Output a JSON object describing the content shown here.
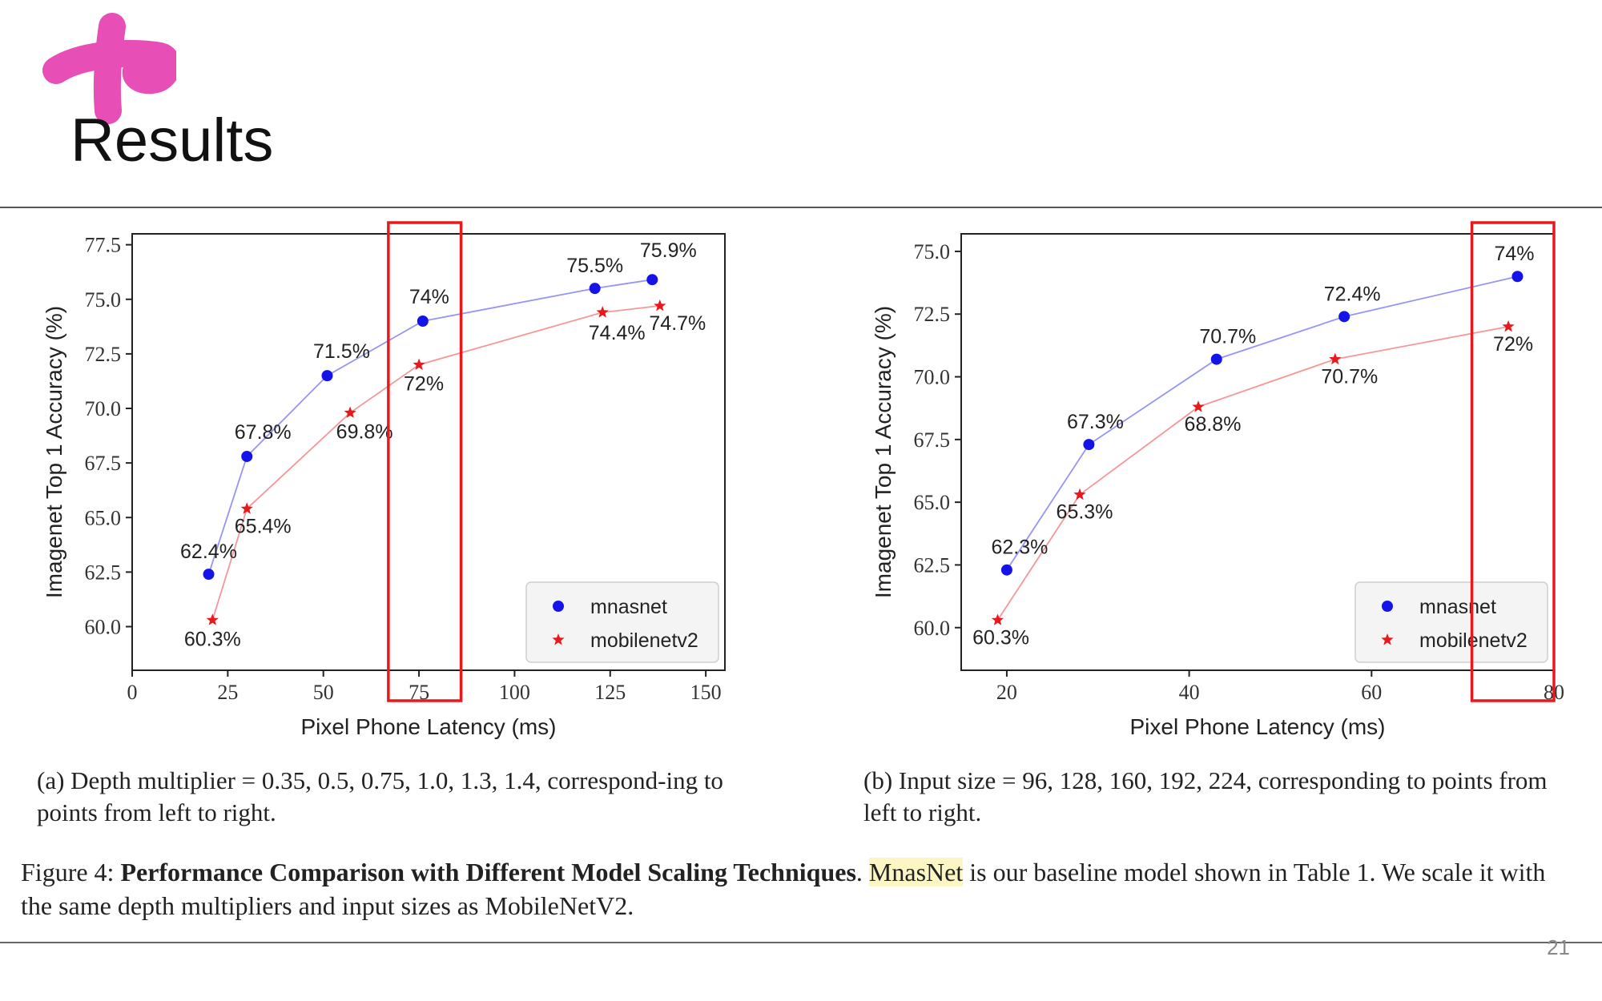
{
  "slide": {
    "title": "Results",
    "page_number": "21",
    "accent_color": "#e84fb6"
  },
  "captions": {
    "a": "(a) Depth multiplier = 0.35, 0.5, 0.75, 1.0, 1.3, 1.4, correspond-ing to points from left to right.",
    "b": "(b) Input size = 96, 128, 160, 192, 224, corresponding to points from left to right.",
    "figure_prefix": "Figure 4: ",
    "figure_bold": "Performance Comparison with Different Model Scaling Techniques",
    "figure_mid": ". ",
    "figure_highlight": "MnasNet",
    "figure_rest": " is our baseline model shown in Table 1. We scale it with the same depth multipliers and input sizes as MobileNetV2."
  },
  "chart_data": [
    {
      "type": "line",
      "xlabel": "Pixel Phone Latency (ms)",
      "ylabel": "Imagenet Top 1 Accuracy (%)",
      "xlim": [
        0,
        155
      ],
      "ylim": [
        58,
        78
      ],
      "xticks": [
        0,
        25,
        50,
        75,
        100,
        125,
        150
      ],
      "yticks": [
        60.0,
        62.5,
        65.0,
        67.5,
        70.0,
        72.5,
        75.0,
        77.5
      ],
      "xtick_labels": [
        "0",
        "25",
        "50",
        "75",
        "100",
        "125",
        "150"
      ],
      "ytick_labels": [
        "60.0",
        "62.5",
        "65.0",
        "67.5",
        "70.0",
        "72.5",
        "75.0",
        "77.5"
      ],
      "legend_position": "bottom-right",
      "highlight_box_x": [
        67,
        86
      ],
      "highlight_color": "#e8191c",
      "series": [
        {
          "name": "mnasnet",
          "color": "#1414e8",
          "marker": "circle",
          "x": [
            20,
            30,
            51,
            76,
            121,
            136
          ],
          "y": [
            62.4,
            67.8,
            71.5,
            74.0,
            75.5,
            75.9
          ],
          "labels": [
            "62.4%",
            "67.8%",
            "71.5%",
            "74%",
            "75.5%",
            "75.9%"
          ]
        },
        {
          "name": "mobilenetv2",
          "color": "#e8191c",
          "marker": "star",
          "x": [
            21,
            30,
            57,
            75,
            123,
            138
          ],
          "y": [
            60.3,
            65.4,
            69.8,
            72.0,
            74.4,
            74.7
          ],
          "labels": [
            "60.3%",
            "65.4%",
            "69.8%",
            "72%",
            "74.4%",
            "74.7%"
          ]
        }
      ]
    },
    {
      "type": "line",
      "xlabel": "Pixel Phone Latency (ms)",
      "ylabel": "Imagenet Top 1 Accuracy (%)",
      "xlim": [
        15,
        80
      ],
      "ylim": [
        58.3,
        75.7
      ],
      "xticks": [
        20,
        40,
        60,
        80
      ],
      "yticks": [
        60.0,
        62.5,
        65.0,
        67.5,
        70.0,
        72.5,
        75.0
      ],
      "xtick_labels": [
        "20",
        "40",
        "60",
        "80"
      ],
      "ytick_labels": [
        "60.0",
        "62.5",
        "65.0",
        "67.5",
        "70.0",
        "72.5",
        "75.0"
      ],
      "legend_position": "bottom-right",
      "highlight_box_x": [
        71,
        80
      ],
      "highlight_color": "#e8191c",
      "series": [
        {
          "name": "mnasnet",
          "color": "#1414e8",
          "marker": "circle",
          "x": [
            20,
            29,
            43,
            57,
            76
          ],
          "y": [
            62.3,
            67.3,
            70.7,
            72.4,
            74.0
          ],
          "labels": [
            "62.3%",
            "67.3%",
            "70.7%",
            "72.4%",
            "74%"
          ]
        },
        {
          "name": "mobilenetv2",
          "color": "#e8191c",
          "marker": "star",
          "x": [
            19,
            28,
            41,
            56,
            75
          ],
          "y": [
            60.3,
            65.3,
            68.8,
            70.7,
            72.0
          ],
          "labels": [
            "60.3%",
            "65.3%",
            "68.8%",
            "70.7%",
            "72%"
          ]
        }
      ]
    }
  ]
}
